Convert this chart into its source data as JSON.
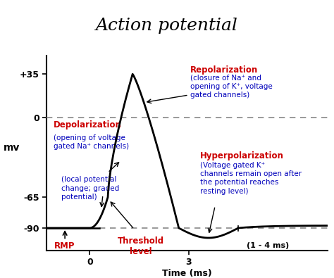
{
  "title": "Action potential",
  "title_bg": "#f5c98a",
  "bg_color": "#ffffff",
  "ylabel": "mv",
  "xlabel": "Time (ms)",
  "yticks": [
    35,
    0,
    -65,
    -90
  ],
  "ytick_labels": [
    "+35",
    "0",
    "-65",
    "-90"
  ],
  "xtick_positions": [
    0,
    3
  ],
  "xtick_labels": [
    "0",
    "3"
  ],
  "ylim": [
    -108,
    50
  ],
  "xlim": [
    -1.3,
    7.2
  ],
  "curve_color": "#000000",
  "dashed_color": "#888888",
  "red_color": "#cc0000",
  "blue_color": "#0000bb",
  "annotations": {
    "depolarization_title": "Depolarization",
    "depolarization_sub": "(opening of voltage\ngated Na⁺ channels)",
    "repolarization_title": "Repolarization",
    "repolarization_sub": "(closure of Na⁺ and\nopening of K⁺, voltage\ngated channels)",
    "hyperpolarization_title": "Hyperpolarization",
    "hyperpolarization_sub": "(Voltage gated K⁺\nchannels remain open after\nthe potential reaches\nresting level)",
    "local_potential": "(local potential\nchange; graded\npotential)",
    "rmp_label": "RMP",
    "threshold_label": "Threshold\nlevel",
    "one_to_four": "(1 - 4 ms)"
  }
}
